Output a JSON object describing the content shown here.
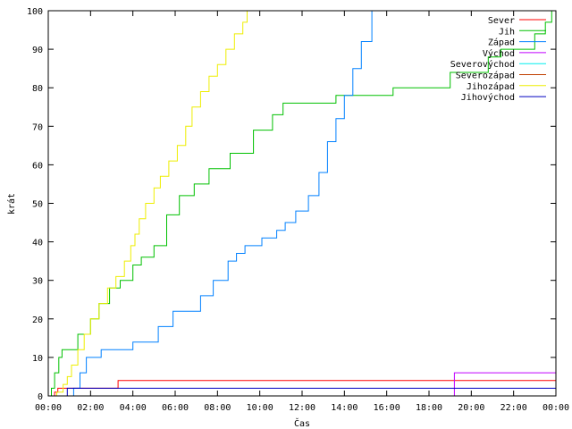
{
  "chart_data": {
    "type": "line",
    "step": true,
    "xlabel": "Čas",
    "ylabel": "krát",
    "xlim": [
      0,
      24
    ],
    "ylim": [
      0,
      100
    ],
    "grid": false,
    "legend_position": "top-right",
    "x_ticks": [
      "00:00",
      "02:00",
      "04:00",
      "06:00",
      "08:00",
      "10:00",
      "12:00",
      "14:00",
      "16:00",
      "18:00",
      "20:00",
      "22:00",
      "00:00"
    ],
    "y_ticks": [
      "0",
      "10",
      "20",
      "30",
      "40",
      "50",
      "60",
      "70",
      "80",
      "90",
      "100"
    ],
    "series": [
      {
        "name": "Sever",
        "color": "#ff0000",
        "points": [
          [
            0,
            0
          ],
          [
            0.3,
            1
          ],
          [
            0.45,
            2
          ],
          [
            3.3,
            4
          ],
          [
            24,
            5
          ]
        ]
      },
      {
        "name": "Jih",
        "color": "#00c000",
        "points": [
          [
            0,
            0
          ],
          [
            0.15,
            2
          ],
          [
            0.3,
            6
          ],
          [
            0.5,
            10
          ],
          [
            0.65,
            12
          ],
          [
            1.4,
            16
          ],
          [
            2.0,
            20
          ],
          [
            2.4,
            24
          ],
          [
            2.9,
            28
          ],
          [
            3.4,
            30
          ],
          [
            4.0,
            34
          ],
          [
            4.4,
            36
          ],
          [
            5.0,
            39
          ],
          [
            5.6,
            47
          ],
          [
            6.2,
            52
          ],
          [
            6.9,
            55
          ],
          [
            7.6,
            59
          ],
          [
            8.6,
            63
          ],
          [
            9.7,
            69
          ],
          [
            10.6,
            73
          ],
          [
            11.1,
            76
          ],
          [
            13.6,
            78
          ],
          [
            16.3,
            80
          ],
          [
            19.0,
            84
          ],
          [
            20.8,
            88
          ],
          [
            21.4,
            90
          ],
          [
            23.0,
            94
          ],
          [
            23.5,
            97
          ],
          [
            23.8,
            100
          ]
        ]
      },
      {
        "name": "Západ",
        "color": "#0080ff",
        "points": [
          [
            0,
            0
          ],
          [
            1.2,
            2
          ],
          [
            1.5,
            6
          ],
          [
            1.8,
            10
          ],
          [
            2.5,
            12
          ],
          [
            4.0,
            14
          ],
          [
            5.2,
            18
          ],
          [
            5.9,
            22
          ],
          [
            7.2,
            26
          ],
          [
            7.8,
            30
          ],
          [
            8.5,
            35
          ],
          [
            8.9,
            37
          ],
          [
            9.3,
            39
          ],
          [
            10.1,
            41
          ],
          [
            10.8,
            43
          ],
          [
            11.2,
            45
          ],
          [
            11.7,
            48
          ],
          [
            12.3,
            52
          ],
          [
            12.8,
            58
          ],
          [
            13.2,
            66
          ],
          [
            13.6,
            72
          ],
          [
            14.0,
            78
          ],
          [
            14.4,
            85
          ],
          [
            14.8,
            92
          ],
          [
            15.3,
            100
          ]
        ]
      },
      {
        "name": "Východ",
        "color": "#c000ff",
        "points": [
          [
            0,
            0
          ],
          [
            19.2,
            6
          ],
          [
            24,
            6
          ]
        ]
      },
      {
        "name": "Severovýchod",
        "color": "#00eeee",
        "points": [
          [
            0,
            0
          ],
          [
            24,
            0
          ]
        ]
      },
      {
        "name": "Severozápad",
        "color": "#c04000",
        "points": [
          [
            0,
            0
          ],
          [
            24,
            0
          ]
        ]
      },
      {
        "name": "Jihozápad",
        "color": "#eeee00",
        "points": [
          [
            0,
            0
          ],
          [
            0.4,
            1
          ],
          [
            0.7,
            3
          ],
          [
            0.9,
            5
          ],
          [
            1.1,
            8
          ],
          [
            1.4,
            12
          ],
          [
            1.7,
            16
          ],
          [
            2.0,
            20
          ],
          [
            2.4,
            24
          ],
          [
            2.8,
            28
          ],
          [
            3.2,
            31
          ],
          [
            3.6,
            35
          ],
          [
            3.9,
            39
          ],
          [
            4.1,
            42
          ],
          [
            4.3,
            46
          ],
          [
            4.6,
            50
          ],
          [
            5.0,
            54
          ],
          [
            5.3,
            57
          ],
          [
            5.7,
            61
          ],
          [
            6.1,
            65
          ],
          [
            6.5,
            70
          ],
          [
            6.8,
            75
          ],
          [
            7.2,
            79
          ],
          [
            7.6,
            83
          ],
          [
            8.0,
            86
          ],
          [
            8.4,
            90
          ],
          [
            8.8,
            94
          ],
          [
            9.2,
            97
          ],
          [
            9.4,
            100
          ]
        ]
      },
      {
        "name": "Jihovýchod",
        "color": "#0000c0",
        "points": [
          [
            0,
            0
          ],
          [
            0.9,
            2
          ],
          [
            24,
            2
          ]
        ]
      }
    ]
  }
}
